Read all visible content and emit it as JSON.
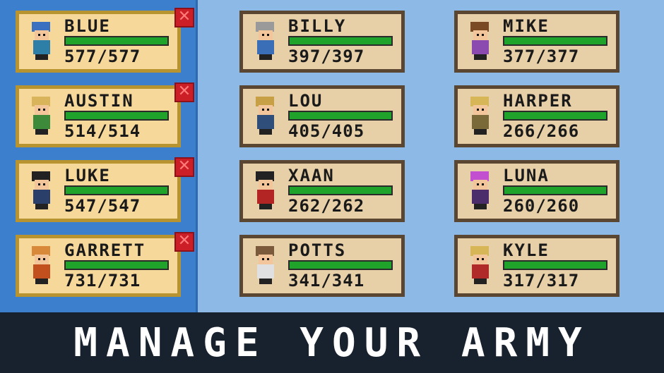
{
  "party": [
    {
      "name": "BLUE",
      "hp": "577/577",
      "health": 1.0,
      "hair": "#3b6fc0",
      "outfit": "#2d7fa8"
    },
    {
      "name": "AUSTIN",
      "hp": "514/514",
      "health": 1.0,
      "hair": "#d9b45a",
      "outfit": "#3d8a3a"
    },
    {
      "name": "LUKE",
      "hp": "547/547",
      "health": 1.0,
      "hair": "#222222",
      "outfit": "#2a3f6a"
    },
    {
      "name": "GARRETT",
      "hp": "731/731",
      "health": 1.0,
      "hair": "#d8893a",
      "outfit": "#c2501f"
    }
  ],
  "close_label": "✕",
  "roster": [
    {
      "name": "BILLY",
      "hp": "397/397",
      "health": 1.0,
      "hair": "#9a9a9a",
      "outfit": "#3a6fb8"
    },
    {
      "name": "MIKE",
      "hp": "377/377",
      "health": 1.0,
      "hair": "#7a4a24",
      "outfit": "#8a4ab0"
    },
    {
      "name": "LOU",
      "hp": "405/405",
      "health": 1.0,
      "hair": "#c7a045",
      "outfit": "#2f4f7a"
    },
    {
      "name": "HARPER",
      "hp": "266/266",
      "health": 1.0,
      "hair": "#d6b656",
      "outfit": "#7a6a3a"
    },
    {
      "name": "XAAN",
      "hp": "262/262",
      "health": 1.0,
      "hair": "#222222",
      "outfit": "#b32525"
    },
    {
      "name": "LUNA",
      "hp": "260/260",
      "health": 1.0,
      "hair": "#c24fd0",
      "outfit": "#4a2d6a"
    },
    {
      "name": "POTTS",
      "hp": "341/341",
      "health": 1.0,
      "hair": "#7a5a3a",
      "outfit": "#e0e0e0"
    },
    {
      "name": "KYLE",
      "hp": "317/317",
      "health": 1.0,
      "hair": "#d6b656",
      "outfit": "#b02a2a"
    }
  ],
  "banner": "MANAGE YOUR ARMY"
}
